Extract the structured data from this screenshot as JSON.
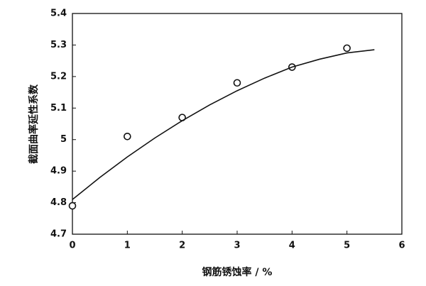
{
  "chart_data": {
    "type": "scatter",
    "x_label": "钢筋锈蚀率 / %",
    "y_label": "截面曲率延性系数",
    "xlim": [
      0,
      6
    ],
    "xticks": [
      0,
      1,
      2,
      3,
      4,
      5,
      6
    ],
    "ylim": [
      4.7,
      5.4
    ],
    "yticks": [
      4.7,
      4.8,
      4.9,
      5,
      5.1,
      5.2,
      5.3,
      5.4
    ],
    "series": [
      {
        "type": "scatter",
        "color": "#111111",
        "x": [
          0,
          1,
          2,
          3,
          4,
          5
        ],
        "values": [
          4.79,
          5.01,
          5.07,
          5.18,
          5.23,
          5.29
        ]
      },
      {
        "type": "line",
        "color": "#111111",
        "x": [
          0,
          0.5,
          1,
          1.5,
          2,
          2.5,
          3,
          3.5,
          4,
          4.5,
          5,
          5.5
        ],
        "values": [
          4.81,
          4.88,
          4.945,
          5.005,
          5.06,
          5.11,
          5.155,
          5.195,
          5.23,
          5.255,
          5.275,
          5.285
        ]
      }
    ]
  }
}
